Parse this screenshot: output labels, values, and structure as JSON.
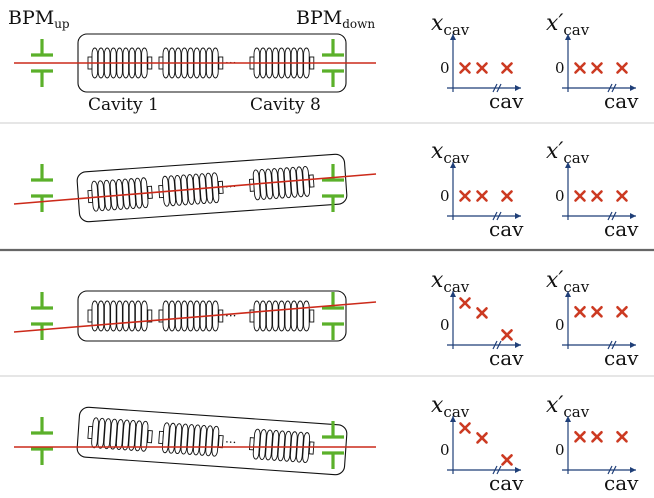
{
  "labels": {
    "bpm_up_main": "BPM",
    "bpm_up_sub": "up",
    "bpm_down_main": "BPM",
    "bpm_down_sub": "down",
    "cavity_first": "Cavity 1",
    "cavity_last": "Cavity 8",
    "ellipsis": "···"
  },
  "plot_labels": {
    "x_main": "x",
    "x_prime_main": "x′",
    "y_sub": "cav",
    "x_axis": "cav",
    "zero": "0"
  },
  "colors": {
    "beam": "#cc2a1a",
    "bpm": "#5bb02a",
    "marker": "#cc3a22",
    "ink": "#111111",
    "axis": "#1f3f78",
    "divider_light": "#cccccc",
    "divider_dark": "#666666"
  },
  "panels": [
    {
      "id": "row-1",
      "module_tilt_deg": 0,
      "beam_line": "horizontal",
      "x_cav_markers": [
        0,
        0,
        0
      ],
      "x_prime_cav_markers": [
        0,
        0,
        0
      ],
      "zero_label_shown": true
    },
    {
      "id": "row-2",
      "module_tilt_deg": -4,
      "beam_line": "tilted",
      "x_cav_markers": [
        0,
        0,
        0
      ],
      "x_prime_cav_markers": [
        0,
        0,
        0
      ],
      "zero_label_shown": true
    },
    {
      "id": "row-3",
      "module_tilt_deg": 0,
      "beam_line": "tilted",
      "x_cav_markers": [
        1.0,
        0.55,
        -0.45
      ],
      "x_prime_cav_markers": [
        0.6,
        0.6,
        0.6
      ],
      "zero_label_shown": true
    },
    {
      "id": "row-4",
      "module_tilt_deg": 4,
      "beam_line": "horizontal",
      "x_cav_markers": [
        1.0,
        0.55,
        -0.45
      ],
      "x_prime_cav_markers": [
        0.6,
        0.6,
        0.6
      ],
      "zero_label_shown": true
    }
  ]
}
